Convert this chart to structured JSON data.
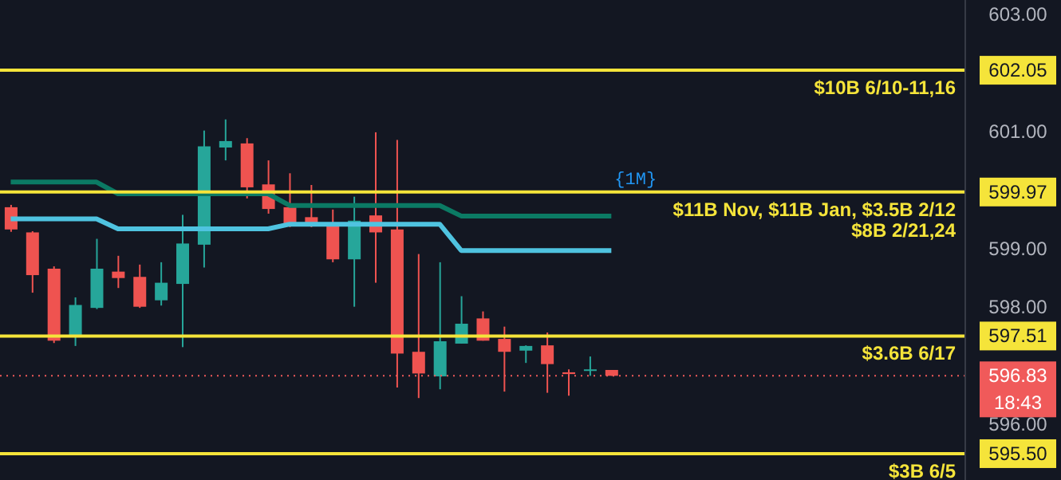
{
  "chart_data": {
    "type": "candlestick",
    "categories": [
      null,
      null,
      null,
      null,
      null,
      null,
      null,
      null,
      null,
      null,
      null,
      null,
      null,
      null,
      null,
      null,
      null,
      null,
      null,
      null,
      null,
      null,
      null,
      null,
      null,
      null,
      null,
      null,
      null,
      null,
      null,
      null,
      null,
      null,
      null,
      null,
      null,
      null,
      null,
      null,
      null,
      null,
      null,
      null,
      null
    ],
    "ohlc": [
      [
        599.71,
        599.75,
        599.29,
        599.33
      ],
      [
        599.28,
        599.3,
        598.25,
        598.55
      ],
      [
        598.66,
        598.7,
        597.39,
        597.43
      ],
      [
        597.5,
        598.17,
        597.34,
        598.04
      ],
      [
        597.99,
        599.17,
        597.97,
        598.66
      ],
      [
        598.61,
        598.88,
        598.33,
        598.5
      ],
      [
        598.52,
        598.73,
        597.99,
        598.01
      ],
      [
        598.12,
        598.77,
        598.03,
        598.42
      ],
      [
        598.4,
        599.58,
        597.32,
        599.09
      ],
      [
        599.07,
        601.02,
        598.68,
        600.75
      ],
      [
        600.73,
        601.21,
        600.51,
        600.84
      ],
      [
        600.8,
        600.89,
        599.86,
        600.05
      ],
      [
        600.1,
        600.51,
        599.6,
        599.68
      ],
      [
        599.71,
        600.29,
        599.37,
        599.43
      ],
      [
        599.54,
        600.09,
        599.37,
        599.43
      ],
      [
        599.43,
        599.67,
        598.77,
        598.82
      ],
      [
        598.82,
        599.89,
        598.01,
        599.48
      ],
      [
        599.57,
        600.99,
        598.42,
        599.28
      ],
      [
        599.33,
        600.86,
        596.63,
        597.21
      ],
      [
        597.24,
        598.91,
        596.45,
        596.87
      ],
      [
        596.82,
        598.77,
        596.6,
        597.42
      ],
      [
        597.38,
        598.19,
        597.38,
        597.72
      ],
      [
        597.81,
        597.93,
        597.43,
        597.43
      ],
      [
        597.46,
        597.67,
        596.56,
        597.24
      ],
      [
        597.26,
        597.35,
        597.05,
        597.34
      ],
      [
        597.35,
        597.57,
        596.54,
        597.03
      ],
      [
        596.89,
        596.94,
        596.49,
        596.86
      ],
      [
        596.92,
        597.16,
        596.83,
        596.94
      ],
      [
        596.93,
        596.93,
        596.83,
        596.83
      ],
      null,
      null,
      null,
      null,
      null,
      null,
      null,
      null,
      null,
      null,
      null,
      null,
      null,
      null,
      null,
      null
    ],
    "series": [
      {
        "type": "line",
        "color": "#0b7a64",
        "values": [
          600.14,
          600.14,
          600.14,
          600.14,
          600.14,
          599.94,
          599.94,
          599.94,
          599.94,
          599.94,
          599.94,
          599.94,
          599.94,
          599.74,
          599.74,
          599.74,
          599.74,
          599.74,
          599.74,
          599.74,
          599.74,
          599.56,
          599.56,
          599.56,
          599.56,
          599.56,
          599.56,
          599.56,
          599.56,
          null,
          null,
          null,
          null,
          null,
          null,
          null,
          null,
          null,
          null,
          null,
          null,
          null,
          null,
          null,
          null
        ]
      },
      {
        "type": "line",
        "color": "#4fc3e0",
        "values": [
          599.51,
          599.51,
          599.51,
          599.51,
          599.51,
          599.34,
          599.34,
          599.34,
          599.34,
          599.34,
          599.34,
          599.34,
          599.34,
          599.42,
          599.42,
          599.42,
          599.42,
          599.42,
          599.42,
          599.42,
          599.42,
          598.97,
          598.97,
          598.97,
          598.97,
          598.97,
          598.97,
          598.97,
          598.97,
          null,
          null,
          null,
          null,
          null,
          null,
          null,
          null,
          null,
          null,
          null,
          null,
          null,
          null,
          null,
          null
        ]
      }
    ],
    "ylim": [
      595.05,
      603.25
    ],
    "yticks": [
      {
        "value": 596,
        "label": "596.00"
      },
      {
        "value": 598,
        "label": "598.00"
      },
      {
        "value": 599,
        "label": "599.00"
      },
      {
        "value": 601,
        "label": "601.00"
      },
      {
        "value": 603,
        "label": "603.00"
      },
      {
        "value": 602.05,
        "label": "602.05"
      },
      {
        "value": 599.97,
        "label": "599.97"
      },
      {
        "value": 597.51,
        "label": "597.51"
      },
      {
        "value": 595.5,
        "label": "595.50"
      },
      {
        "value": 596.83,
        "label": "596.83"
      }
    ],
    "ref_lines": [
      {
        "axis": "y",
        "value": 602.05,
        "label": "$10B 6/10-11,16",
        "color": "#f5e43a",
        "line_style": "solid"
      },
      {
        "axis": "y",
        "value": 599.97,
        "label": "$11B Nov, $11B Jan, $3.5B 2/12\n$8B 2/21,24",
        "color": "#f5e43a",
        "line_style": "solid"
      },
      {
        "axis": "y",
        "value": 597.51,
        "label": "$3.6B 6/17",
        "color": "#f5e43a",
        "line_style": "solid"
      },
      {
        "axis": "y",
        "value": 595.5,
        "label": "$3B 6/5",
        "color": "#f5e43a",
        "line_style": "solid"
      },
      {
        "axis": "y",
        "value": 596.83,
        "color": "#f05a5a",
        "line_style": "dotted"
      }
    ],
    "annotations": [
      {
        "text": "{1M}",
        "y": 599.97
      },
      "18:43"
    ],
    "grid": false,
    "legend": false
  }
}
